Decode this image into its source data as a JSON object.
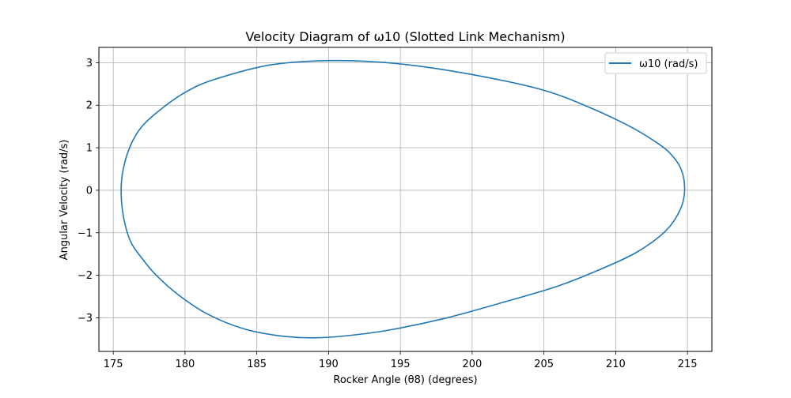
{
  "chart_data": {
    "type": "line",
    "title": "Velocity Diagram of ω10 (Slotted Link Mechanism)",
    "xlabel": "Rocker Angle (θ8) (degrees)",
    "ylabel": "Angular Velocity (rad/s)",
    "xlim": [
      174.0,
      216.7
    ],
    "ylim": [
      -3.79,
      3.36
    ],
    "xticks": [
      175,
      180,
      185,
      190,
      195,
      200,
      205,
      210,
      215
    ],
    "xtick_labels": [
      "175",
      "180",
      "185",
      "190",
      "195",
      "200",
      "205",
      "210",
      "215"
    ],
    "yticks": [
      -3,
      -2,
      -1,
      0,
      1,
      2,
      3
    ],
    "ytick_labels": [
      "−3",
      "−2",
      "−1",
      "0",
      "1",
      "2",
      "3"
    ],
    "grid": true,
    "legend_position": "top-right",
    "series": [
      {
        "name": "ω10 (rad/s)",
        "color": "#1f77b4",
        "x": [
          214.8,
          214.55,
          213.7,
          212.5,
          211.0,
          208.5,
          205.0,
          200.0,
          195.0,
          190.5,
          186.0,
          182.0,
          180.0,
          178.3,
          177.0,
          176.2,
          175.7,
          175.55,
          175.7,
          176.2,
          177.0,
          178.0,
          179.5,
          181.5,
          184.0,
          186.5,
          188.8,
          191.0,
          194.0,
          198.0,
          202.0,
          206.0,
          209.0,
          211.5,
          213.5,
          214.5,
          214.8
        ],
        "y": [
          0.0,
          0.5,
          0.9,
          1.2,
          1.5,
          1.9,
          2.35,
          2.72,
          2.97,
          3.05,
          2.95,
          2.6,
          2.3,
          1.9,
          1.5,
          1.05,
          0.5,
          0.0,
          -0.6,
          -1.2,
          -1.6,
          -2.0,
          -2.45,
          -2.9,
          -3.25,
          -3.42,
          -3.47,
          -3.43,
          -3.3,
          -3.02,
          -2.65,
          -2.25,
          -1.85,
          -1.45,
          -0.95,
          -0.45,
          0.0
        ]
      }
    ]
  }
}
